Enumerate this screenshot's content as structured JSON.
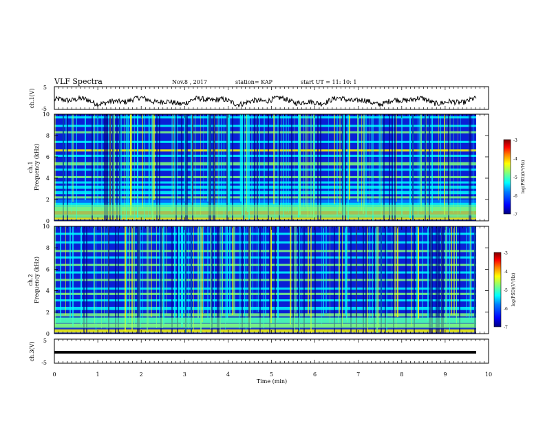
{
  "header": {
    "title": "VLF Spectra",
    "date": "Nov.8  , 2017",
    "station": "station= KAP",
    "start": "start  UT =   11: 10: 1"
  },
  "chart_data": [
    {
      "type": "line",
      "panel": "ch1-waveform",
      "ylabel": "ch.1(V)",
      "ylim": [
        -5,
        5
      ],
      "yticks": [
        "5",
        "-5"
      ],
      "xlim": [
        0,
        10
      ],
      "note_series": "irregular noisy waveform fluctuating roughly between -4.5 and 0.5 V",
      "series_samples": [
        -0.5,
        -1.2,
        -2.5,
        -0.8,
        -1.9,
        -0.3,
        -1.5,
        -2.8,
        -1.0,
        -0.2,
        -1.6,
        -2.2,
        -0.6,
        -1.3,
        -3.1,
        -0.9,
        -1.7,
        -0.4,
        -2.0,
        -1.1
      ]
    },
    {
      "type": "heatmap",
      "panel": "ch1-spectrogram",
      "ylabel_lines": [
        "ch.1",
        "Frequency  (kHz)"
      ],
      "ylim": [
        0,
        10
      ],
      "yticks": [
        "0",
        "2",
        "4",
        "6",
        "8",
        "10"
      ],
      "xlim": [
        0,
        10
      ],
      "colorbar": {
        "label": "log(PSD)(V²/Hz)",
        "range": [
          -7,
          -3
        ],
        "ticks": [
          "-3",
          "-4",
          "-5",
          "-6",
          "-7"
        ]
      }
    },
    {
      "type": "heatmap",
      "panel": "ch2-spectrogram",
      "ylabel_lines": [
        "ch.2",
        "Frequency  (kHz)"
      ],
      "ylim": [
        0,
        10
      ],
      "yticks": [
        "0",
        "2",
        "4",
        "6",
        "8",
        "10"
      ],
      "xlim": [
        0,
        10
      ],
      "colorbar": {
        "label": "log(PSD)(V²/Hz)",
        "range": [
          -7,
          -3
        ],
        "ticks": [
          "-3",
          "-4",
          "-5",
          "-6",
          "-7"
        ]
      }
    },
    {
      "type": "line",
      "panel": "ch3-waveform",
      "ylabel": "ch.3(V)",
      "ylim": [
        -5,
        5
      ],
      "yticks": [
        "5",
        "-5"
      ],
      "xlim": [
        0,
        10
      ],
      "series_constant": -2
    }
  ],
  "xaxis": {
    "label": "Time  (min)",
    "ticks": [
      "0",
      "1",
      "2",
      "3",
      "4",
      "5",
      "6",
      "7",
      "8",
      "9",
      "10"
    ]
  },
  "colors": {
    "scale": [
      "#00007f",
      "#0000ff",
      "#007fff",
      "#00ffff",
      "#7fff7f",
      "#ffff00",
      "#ff7f00",
      "#ff0000",
      "#7f0000"
    ],
    "line": "#000000"
  }
}
